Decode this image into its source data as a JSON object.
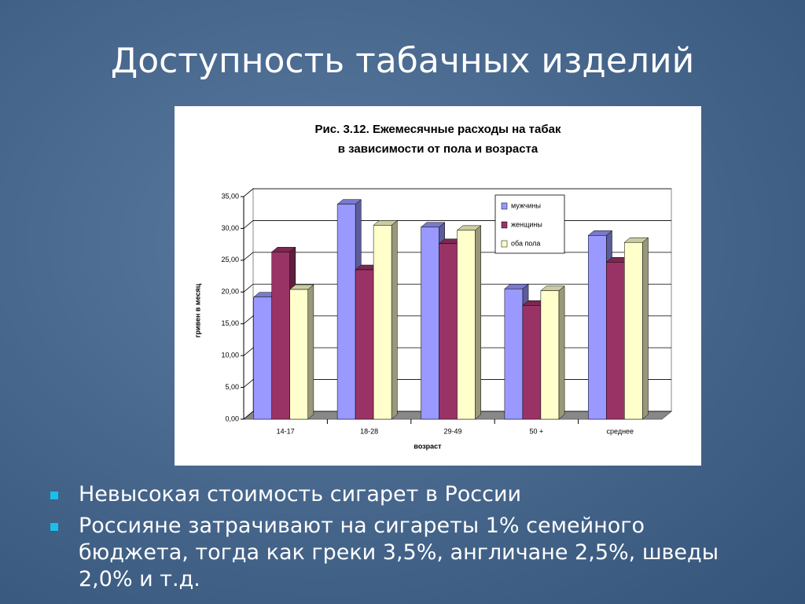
{
  "slide": {
    "title": "Доступность табачных изделий",
    "bullets": [
      "Невысокая стоимость сигарет в России",
      "Россияне затрачивают на сигареты 1% семейного бюджета, тогда как греки 3,5%, англичане 2,5%, шведы 2,0% и т.д."
    ]
  },
  "chart_data": {
    "type": "bar",
    "title": [
      "Рис. 3.12. Ежемесячные расходы на табак",
      "в зависимости от пола и возраста"
    ],
    "xlabel": "возраст",
    "ylabel": "гривен в месяц",
    "categories": [
      "14-17",
      "18-28",
      "29-49",
      "50 +",
      "среднее"
    ],
    "series": [
      {
        "name": "мужчины",
        "color": "#9999ff",
        "values": [
          19.2,
          33.8,
          30.2,
          20.5,
          28.9
        ]
      },
      {
        "name": "женщины",
        "color": "#993366",
        "values": [
          26.3,
          23.5,
          27.6,
          17.9,
          24.7
        ]
      },
      {
        "name": "оба пола",
        "color": "#ffffcc",
        "values": [
          20.4,
          30.5,
          29.7,
          20.2,
          27.8
        ]
      }
    ],
    "ylim": [
      0,
      35
    ],
    "yticks": [
      {
        "value": 0,
        "label": "0,00"
      },
      {
        "value": 5,
        "label": "5,00"
      },
      {
        "value": 10,
        "label": "10,00"
      },
      {
        "value": 15,
        "label": "15,00"
      },
      {
        "value": 20,
        "label": "20,00"
      },
      {
        "value": 25,
        "label": "25,00"
      },
      {
        "value": 30,
        "label": "30,00"
      },
      {
        "value": 35,
        "label": "35,00"
      }
    ],
    "grid": true,
    "legend": "upper-right"
  }
}
